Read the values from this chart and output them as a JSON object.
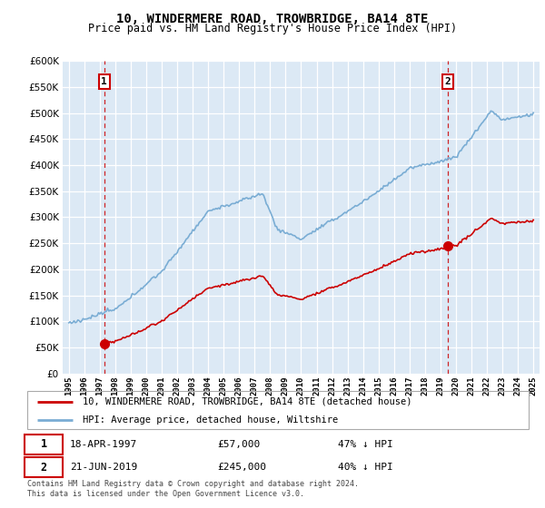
{
  "title": "10, WINDERMERE ROAD, TROWBRIDGE, BA14 8TE",
  "subtitle": "Price paid vs. HM Land Registry's House Price Index (HPI)",
  "legend_line1": "10, WINDERMERE ROAD, TROWBRIDGE, BA14 8TE (detached house)",
  "legend_line2": "HPI: Average price, detached house, Wiltshire",
  "sale1_date": "18-APR-1997",
  "sale1_price": 57000,
  "sale1_label": "47% ↓ HPI",
  "sale2_date": "21-JUN-2019",
  "sale2_price": 245000,
  "sale2_label": "40% ↓ HPI",
  "footnote": "Contains HM Land Registry data © Crown copyright and database right 2024.\nThis data is licensed under the Open Government Licence v3.0.",
  "hpi_color": "#7aadd4",
  "price_color": "#cc0000",
  "sale1_x": 1997.29,
  "sale2_x": 2019.47,
  "ylim_max": 600000,
  "ylim_min": 0,
  "plot_bg": "#dce9f5",
  "grid_color": "#ffffff",
  "yticks": [
    0,
    50000,
    100000,
    150000,
    200000,
    250000,
    300000,
    350000,
    400000,
    450000,
    500000,
    550000,
    600000
  ],
  "ytick_labels": [
    "£0",
    "£50K",
    "£100K",
    "£150K",
    "£200K",
    "£250K",
    "£300K",
    "£350K",
    "£400K",
    "£450K",
    "£500K",
    "£550K",
    "£600K"
  ]
}
